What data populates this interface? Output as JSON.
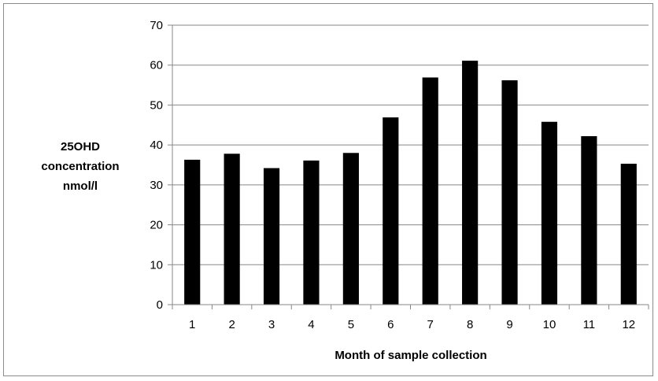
{
  "chart_data": {
    "type": "bar",
    "categories": [
      "1",
      "2",
      "3",
      "4",
      "5",
      "6",
      "7",
      "8",
      "9",
      "10",
      "11",
      "12"
    ],
    "values": [
      36.3,
      37.8,
      34.2,
      36.1,
      38.0,
      46.9,
      56.9,
      61.1,
      56.2,
      45.8,
      42.2,
      35.3
    ],
    "title": "",
    "xlabel": "Month of sample collection",
    "ylabel_lines": [
      "25OHD",
      "concentration",
      "nmol/l"
    ],
    "ylim": [
      0,
      70
    ],
    "yticks": [
      0,
      10,
      20,
      30,
      40,
      50,
      60,
      70
    ],
    "grid": "horizontal",
    "legend": "none",
    "bar_color": "#000000",
    "grid_color": "#878787"
  }
}
